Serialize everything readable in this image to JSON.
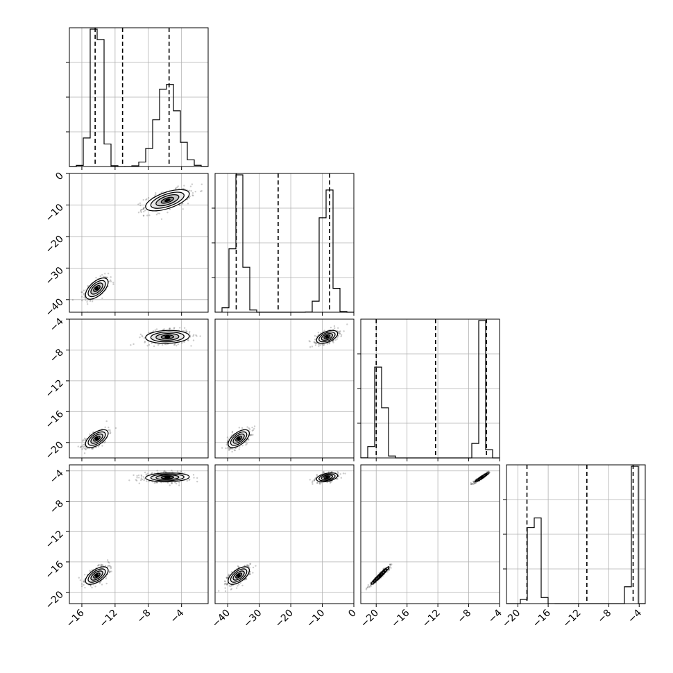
{
  "chart_data": {
    "type": "corner",
    "parameters": [
      {
        "range": [
          -17.5,
          -0.8
        ],
        "ticks": [
          -16,
          -12,
          -8,
          -4
        ],
        "modes": [
          {
            "mean": -14.2,
            "sd": 0.65,
            "weight": 0.5
          },
          {
            "mean": -5.7,
            "sd": 1.25,
            "weight": 0.5
          }
        ],
        "quantiles": [
          -14.4,
          -11.1,
          -5.5
        ]
      },
      {
        "range": [
          -44,
          0
        ],
        "ticks": [
          -40,
          -30,
          -20,
          -10,
          0
        ],
        "modes": [
          {
            "mean": -36.5,
            "sd": 1.6,
            "weight": 0.5
          },
          {
            "mean": -8.5,
            "sd": 1.6,
            "weight": 0.5
          }
        ],
        "quantiles": [
          -37.3,
          -24.0,
          -7.7
        ]
      },
      {
        "range": [
          -22,
          -4
        ],
        "ticks": [
          -20,
          -16,
          -12,
          -8,
          -4
        ],
        "modes": [
          {
            "mean": -19.5,
            "sd": 0.55,
            "weight": 0.5
          },
          {
            "mean": -6.3,
            "sd": 0.4,
            "weight": 0.5
          }
        ],
        "quantiles": [
          -20.0,
          -12.3,
          -5.7
        ]
      },
      {
        "range": [
          -21.5,
          -3.2
        ],
        "ticks": [
          -20,
          -16,
          -12,
          -8,
          -4
        ],
        "modes": [
          {
            "mean": -17.8,
            "sd": 0.55,
            "weight": 0.5
          },
          {
            "mean": -4.85,
            "sd": 0.28,
            "weight": 0.5
          }
        ],
        "quantiles": [
          -18.8,
          -10.9,
          -4.8
        ]
      }
    ],
    "pairs": [
      {
        "row": 1,
        "col": 0,
        "blobs": [
          {
            "mx": -14.2,
            "my": -36.5,
            "sx": 0.65,
            "sy": 1.6,
            "rho": 0.6
          },
          {
            "mx": -5.7,
            "my": -8.5,
            "sx": 1.25,
            "sy": 1.6,
            "rho": 0.6
          }
        ]
      },
      {
        "row": 2,
        "col": 0,
        "blobs": [
          {
            "mx": -14.2,
            "my": -19.5,
            "sx": 0.65,
            "sy": 0.55,
            "rho": 0.6
          },
          {
            "mx": -5.7,
            "my": -6.3,
            "sx": 1.25,
            "sy": 0.4,
            "rho": 0.1
          }
        ]
      },
      {
        "row": 2,
        "col": 1,
        "blobs": [
          {
            "mx": -36.5,
            "my": -19.5,
            "sx": 1.6,
            "sy": 0.55,
            "rho": 0.6
          },
          {
            "mx": -8.5,
            "my": -6.3,
            "sx": 1.6,
            "sy": 0.4,
            "rho": 0.5
          }
        ]
      },
      {
        "row": 3,
        "col": 0,
        "blobs": [
          {
            "mx": -14.2,
            "my": -17.8,
            "sx": 0.65,
            "sy": 0.55,
            "rho": 0.6
          },
          {
            "mx": -5.7,
            "my": -4.85,
            "sx": 1.25,
            "sy": 0.28,
            "rho": 0.1
          }
        ]
      },
      {
        "row": 3,
        "col": 1,
        "blobs": [
          {
            "mx": -36.5,
            "my": -17.8,
            "sx": 1.6,
            "sy": 0.55,
            "rho": 0.6
          },
          {
            "mx": -8.5,
            "my": -4.85,
            "sx": 1.6,
            "sy": 0.28,
            "rho": 0.4
          }
        ]
      },
      {
        "row": 3,
        "col": 2,
        "blobs": [
          {
            "mx": -19.5,
            "my": -17.8,
            "sx": 0.55,
            "sy": 0.55,
            "rho": 0.97
          },
          {
            "mx": -6.3,
            "my": -4.85,
            "sx": 0.4,
            "sy": 0.28,
            "rho": 0.95
          }
        ]
      }
    ],
    "grid": true,
    "colors": {
      "line": "#000000",
      "grid": "#b0b0b0",
      "points": "#444444"
    }
  }
}
